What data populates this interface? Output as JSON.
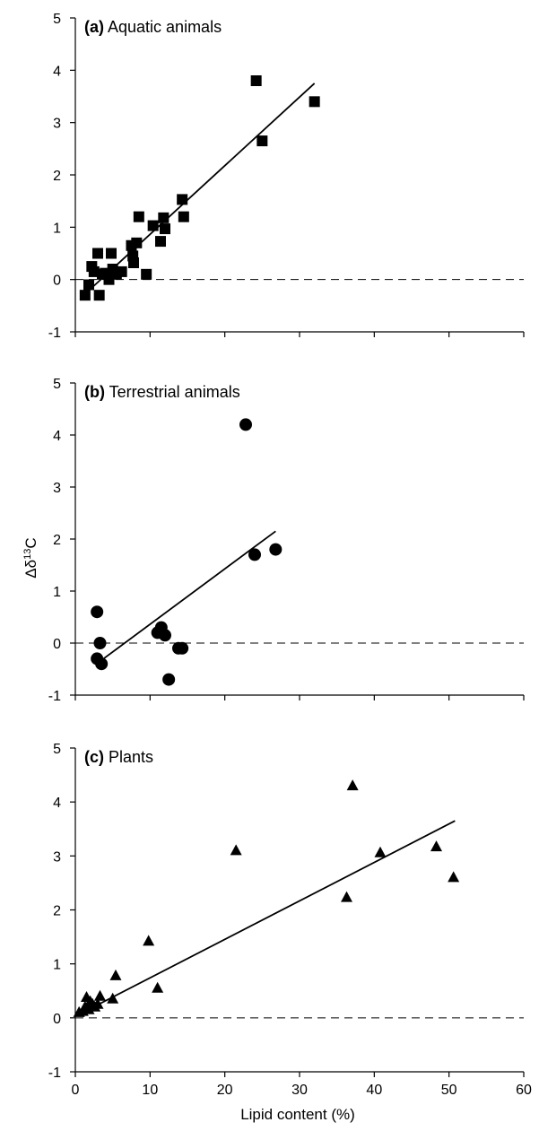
{
  "figure": {
    "ylabel_main": "Δδ",
    "ylabel_sup": "13",
    "ylabel_tail": "C",
    "xlabel": "Lipid content (%)"
  },
  "chart_data": [
    {
      "type": "scatter",
      "panel_letter": "(a)",
      "panel_title": "Aquatic animals",
      "marker": "square",
      "xlim": [
        0,
        60
      ],
      "ylim": [
        -1,
        5
      ],
      "xticks": [
        "0",
        "10",
        "20",
        "30",
        "40",
        "50",
        "60"
      ],
      "yticks": [
        "-1",
        "0",
        "1",
        "2",
        "3",
        "4",
        "5"
      ],
      "show_x_tick_labels": false,
      "zero_line": "dashed",
      "grid": false,
      "points": [
        [
          1.3,
          -0.3
        ],
        [
          1.8,
          -0.1
        ],
        [
          2.2,
          0.25
        ],
        [
          2.5,
          0.15
        ],
        [
          3.0,
          0.5
        ],
        [
          3.2,
          -0.3
        ],
        [
          3.6,
          0.1
        ],
        [
          4.0,
          0.12
        ],
        [
          4.5,
          0.0
        ],
        [
          4.8,
          0.5
        ],
        [
          5.0,
          0.2
        ],
        [
          5.5,
          0.1
        ],
        [
          6.2,
          0.15
        ],
        [
          7.5,
          0.65
        ],
        [
          7.7,
          0.45
        ],
        [
          7.8,
          0.32
        ],
        [
          8.2,
          0.7
        ],
        [
          8.5,
          1.2
        ],
        [
          9.5,
          0.1
        ],
        [
          10.4,
          1.03
        ],
        [
          11.4,
          0.73
        ],
        [
          11.8,
          1.18
        ],
        [
          12.0,
          0.97
        ],
        [
          14.3,
          1.53
        ],
        [
          14.5,
          1.2
        ],
        [
          24.2,
          3.8
        ],
        [
          25.0,
          2.65
        ],
        [
          32.0,
          3.4
        ]
      ],
      "trendline": [
        [
          1.5,
          -0.25
        ],
        [
          32.0,
          3.75
        ]
      ]
    },
    {
      "type": "scatter",
      "panel_letter": "(b)",
      "panel_title": "Terrestrial animals",
      "marker": "circle",
      "xlim": [
        0,
        60
      ],
      "ylim": [
        -1,
        5
      ],
      "xticks": [
        "0",
        "10",
        "20",
        "30",
        "40",
        "50",
        "60"
      ],
      "yticks": [
        "-1",
        "0",
        "1",
        "2",
        "3",
        "4",
        "5"
      ],
      "show_x_tick_labels": false,
      "zero_line": "dashed",
      "grid": false,
      "points": [
        [
          2.9,
          0.6
        ],
        [
          2.9,
          -0.3
        ],
        [
          3.3,
          0.0
        ],
        [
          3.5,
          -0.4
        ],
        [
          11.0,
          0.2
        ],
        [
          11.5,
          0.3
        ],
        [
          12.0,
          0.15
        ],
        [
          12.5,
          -0.7
        ],
        [
          13.8,
          -0.1
        ],
        [
          14.3,
          -0.1
        ],
        [
          22.8,
          4.2
        ],
        [
          24.0,
          1.7
        ],
        [
          26.8,
          1.8
        ]
      ],
      "trendline": [
        [
          3.3,
          -0.35
        ],
        [
          26.8,
          2.15
        ]
      ]
    },
    {
      "type": "scatter",
      "panel_letter": "(c)",
      "panel_title": "Plants",
      "marker": "triangle",
      "xlim": [
        0,
        60
      ],
      "ylim": [
        -1,
        5
      ],
      "xticks": [
        "0",
        "10",
        "20",
        "30",
        "40",
        "50",
        "60"
      ],
      "yticks": [
        "-1",
        "0",
        "1",
        "2",
        "3",
        "4",
        "5"
      ],
      "show_x_tick_labels": true,
      "zero_line": "dashed",
      "grid": false,
      "points": [
        [
          0.5,
          0.1
        ],
        [
          1.0,
          0.12
        ],
        [
          1.3,
          0.2
        ],
        [
          1.5,
          0.38
        ],
        [
          1.8,
          0.15
        ],
        [
          2.0,
          0.3
        ],
        [
          2.3,
          0.25
        ],
        [
          2.6,
          0.2
        ],
        [
          3.0,
          0.25
        ],
        [
          3.3,
          0.4
        ],
        [
          5.0,
          0.35
        ],
        [
          5.4,
          0.78
        ],
        [
          9.8,
          1.42
        ],
        [
          11.0,
          0.55
        ],
        [
          21.5,
          3.1
        ],
        [
          36.3,
          2.23
        ],
        [
          37.1,
          4.3
        ],
        [
          40.8,
          3.06
        ],
        [
          48.3,
          3.17
        ],
        [
          50.6,
          2.6
        ]
      ],
      "trendline": [
        [
          0.3,
          0.05
        ],
        [
          50.8,
          3.65
        ]
      ]
    }
  ]
}
